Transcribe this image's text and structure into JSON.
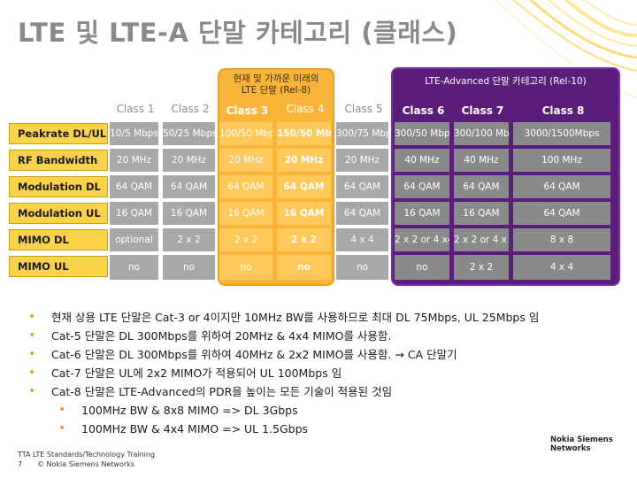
{
  "title": "LTE 및 LTE-A 단말 카테고리 (클래스)",
  "rel8_label": "현재 및 가까운 미래의\nLTE 단말 (Rel-8)",
  "rel10_label": "LTE-Advanced 단말 카테고리 (Rel-10)",
  "colors": {
    "orange": "#f8b53a",
    "purple": "#5a1e7a",
    "gray": "#a8a8a8",
    "label_yellow": "#fbd34a"
  },
  "classes": [
    "Class 1",
    "Class 2",
    "Class 3",
    "Class 4",
    "Class 5",
    "Class 6",
    "Class 7",
    "Class 8"
  ],
  "rows": [
    {
      "label": "Peakrate DL/UL",
      "values": [
        "10/5 Mbps",
        "50/25  Mbps",
        "100/50 Mbps",
        "150/50 Mbps",
        "300/75 Mbps",
        "300/50 Mbps",
        "300/100 Mbps",
        "3000/1500Mbps"
      ]
    },
    {
      "label": "RF Bandwidth",
      "values": [
        "20 MHz",
        "20 MHz",
        "20 MHz",
        "20 MHz",
        "20 MHz",
        "40 MHz",
        "40 MHz",
        "100 MHz"
      ]
    },
    {
      "label": "Modulation DL",
      "values": [
        "64 QAM",
        "64 QAM",
        "64 QAM",
        "64 QAM",
        "64 QAM",
        "64 QAM",
        "64 QAM",
        "64 QAM"
      ]
    },
    {
      "label": "Modulation UL",
      "values": [
        "16 QAM",
        "16 QAM",
        "16 QAM",
        "16 QAM",
        "64 QAM",
        "16 QAM",
        "16 QAM",
        "64 QAM"
      ]
    },
    {
      "label": "MIMO DL",
      "values": [
        "optional",
        "2 x 2",
        "2 x 2",
        "2 x 2",
        "4 x 4",
        "2 x 2 or 4 x4",
        "2 x 2 or 4 x 4",
        "8 x 8"
      ]
    },
    {
      "label": "MIMO UL",
      "values": [
        "no",
        "no",
        "no",
        "no",
        "no",
        "no",
        "2 x 2",
        "4 x 4"
      ]
    }
  ],
  "bullets": [
    {
      "level": 1,
      "text": "현재 상용 LTE 단말은 Cat-3 or 4이지만 10MHz BW를 사용하므로 최대 DL 75Mbps, UL 25Mbps 임"
    },
    {
      "level": 1,
      "text": "Cat-5 단말은 DL 300Mbps를 위하여 20MHz & 4x4 MIMO를 사용함."
    },
    {
      "level": 1,
      "text": "Cat-6 단말은 DL 300Mbps를 위하여 40MHz & 2x2 MIMO를 사용함. → CA 단말기"
    },
    {
      "level": 1,
      "text": "Cat-7 단말은 UL에 2x2 MIMO가 적용되어 UL 100Mbps 임"
    },
    {
      "level": 1,
      "text": "Cat-8 단말은 LTE-Advanced의 PDR을 높이는 모든 기술이 적용된 것임"
    },
    {
      "level": 2,
      "text": "100MHz BW & 8x8 MIMO => DL 3Gbps"
    },
    {
      "level": 2,
      "text": "100MHz BW & 4x4 MIMO => UL 1.5Gbps"
    }
  ],
  "footer": {
    "line1": "TTA LTE Standards/Technology Training",
    "page": "7",
    "copyright": "© Nokia Siemens Networks"
  },
  "logo": {
    "line1": "Nokia Siemens",
    "line2": "Networks"
  }
}
